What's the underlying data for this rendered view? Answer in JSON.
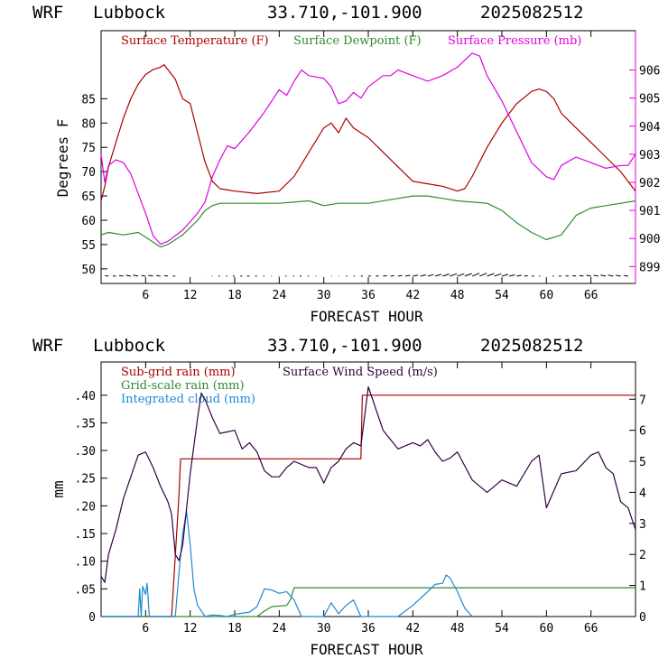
{
  "header": {
    "model": "WRF",
    "station": "Lubbock",
    "location": "33.710,-101.900",
    "run": "2025082512"
  },
  "colors": {
    "temperature": "#aa0000",
    "dewpoint": "#2e8b2e",
    "pressure": "#dd00dd",
    "subgrid_rain": "#aa0000",
    "gridscale_rain": "#2e8b2e",
    "cloud": "#1e88d0",
    "wind_speed": "#300040"
  },
  "chart_data": [
    {
      "type": "line",
      "xlabel": "FORECAST HOUR",
      "ylabel": "Degrees F",
      "xlim": [
        0,
        72
      ],
      "ylim": [
        47,
        99
      ],
      "y2lim": [
        898.4,
        907.4
      ],
      "xticks": [
        6,
        12,
        18,
        24,
        30,
        36,
        42,
        48,
        54,
        60,
        66
      ],
      "xticklabels": [
        "6",
        "12",
        "18",
        "24",
        "30",
        "36",
        "42",
        "48",
        "54",
        "60",
        "66"
      ],
      "yticks": [
        50,
        55,
        60,
        65,
        70,
        75,
        80,
        85
      ],
      "yticklabels": [
        "50",
        "55",
        "60",
        "65",
        "70",
        "75",
        "80",
        "85"
      ],
      "y2ticks": [
        899,
        900,
        901,
        902,
        903,
        904,
        905,
        906
      ],
      "y2ticklabels": [
        "899",
        "900",
        "901",
        "902",
        "903",
        "904",
        "905",
        "906"
      ],
      "legend": [
        "Surface Temperature (F)",
        "Surface Dewpoint (F)",
        "Surface Pressure (mb)"
      ],
      "series": [
        {
          "name": "Surface Temperature (F)",
          "axis": "left",
          "x": [
            0,
            0.5,
            1,
            2,
            3,
            4,
            5,
            6,
            7,
            8,
            8.5,
            9,
            10,
            11,
            12,
            13,
            14,
            15,
            16,
            18,
            21,
            24,
            26,
            28,
            30,
            31,
            32,
            33,
            34,
            36,
            38,
            40,
            42,
            44,
            46,
            48,
            49,
            50,
            52,
            54,
            56,
            58,
            59,
            60,
            61,
            62,
            64,
            66,
            68,
            70,
            72
          ],
          "y": [
            64,
            67,
            71,
            76,
            81,
            85,
            88,
            90,
            91,
            91.5,
            92,
            91,
            89,
            85,
            84,
            78,
            72,
            68,
            66.5,
            66,
            65.5,
            66,
            69,
            74,
            79,
            80,
            78,
            81,
            79,
            77,
            74,
            71,
            68,
            67.5,
            67,
            66,
            66.5,
            69,
            75,
            80,
            84,
            86.5,
            87,
            86.5,
            85,
            82,
            79,
            76,
            73,
            70,
            66
          ]
        },
        {
          "name": "Surface Dewpoint (F)",
          "axis": "left",
          "x": [
            0,
            1,
            3,
            5,
            6,
            7,
            8,
            9,
            10,
            11,
            12,
            13,
            14,
            15,
            16,
            18,
            24,
            28,
            30,
            32,
            36,
            40,
            42,
            44,
            46,
            48,
            52,
            54,
            56,
            58,
            60,
            62,
            64,
            66,
            68,
            70,
            72
          ],
          "y": [
            57,
            57.5,
            57,
            57.5,
            56.5,
            55.5,
            54.5,
            55,
            56,
            57,
            58.5,
            60,
            62,
            63,
            63.5,
            63.5,
            63.5,
            64,
            63,
            63.5,
            63.5,
            64.5,
            65,
            65,
            64.5,
            64,
            63.5,
            62,
            59.5,
            57.5,
            56,
            57,
            61,
            62.5,
            63,
            63.5,
            64
          ]
        },
        {
          "name": "Surface Pressure (mb)",
          "axis": "right",
          "x": [
            0,
            0.5,
            1,
            2,
            3,
            4,
            5,
            6,
            7,
            8,
            9,
            10,
            11,
            12,
            13,
            14,
            15,
            16,
            17,
            18,
            20,
            22,
            24,
            25,
            26,
            27,
            28,
            30,
            31,
            32,
            33,
            34,
            35,
            36,
            38,
            39,
            40,
            42,
            44,
            46,
            48,
            50,
            51,
            52,
            54,
            56,
            58,
            60,
            61,
            62,
            64,
            66,
            68,
            70,
            71,
            72
          ],
          "y": [
            903,
            902,
            902.6,
            902.8,
            902.7,
            902.3,
            901.6,
            900.9,
            900.1,
            899.8,
            899.9,
            900.1,
            900.3,
            900.6,
            900.9,
            901.3,
            902.2,
            902.8,
            903.3,
            903.2,
            903.8,
            904.5,
            905.3,
            905.1,
            905.6,
            906.0,
            905.8,
            905.7,
            905.4,
            904.8,
            904.9,
            905.2,
            905.0,
            905.4,
            905.8,
            905.8,
            906.0,
            905.8,
            905.6,
            905.8,
            906.1,
            906.6,
            906.5,
            905.8,
            904.9,
            903.8,
            902.7,
            902.2,
            902.1,
            902.6,
            902.9,
            902.7,
            902.5,
            902.6,
            902.6,
            903
          ]
        }
      ],
      "wind_barbs": {
        "x": [
          1,
          2,
          3,
          4,
          5,
          6,
          7,
          8,
          9,
          10,
          14,
          15,
          16,
          17,
          18,
          19,
          20,
          21,
          22,
          23,
          24,
          25,
          26,
          27,
          28,
          29,
          30,
          31,
          32,
          33,
          34,
          35,
          36,
          37,
          38,
          39,
          40,
          41,
          42,
          43,
          44,
          45,
          46,
          47,
          48,
          49,
          50,
          51,
          52,
          53,
          54,
          55,
          56,
          57,
          58,
          59,
          60,
          61,
          62,
          63,
          64,
          65,
          66,
          67,
          68,
          69,
          70,
          71
        ],
        "dir_deg": [
          210,
          205,
          215,
          220,
          225,
          215,
          220,
          215,
          210,
          200,
          180,
          185,
          190,
          190,
          195,
          195,
          200,
          195,
          190,
          185,
          185,
          190,
          190,
          195,
          190,
          185,
          180,
          175,
          175,
          170,
          170,
          165,
          160,
          155,
          150,
          150,
          145,
          140,
          135,
          130,
          125,
          120,
          115,
          110,
          110,
          105,
          100,
          100,
          105,
          110,
          120,
          130,
          140,
          150,
          160,
          170,
          180,
          190,
          200,
          205,
          210,
          215,
          220,
          220,
          225,
          225,
          220,
          215
        ]
      }
    },
    {
      "type": "line",
      "xlabel": "FORECAST HOUR",
      "ylabel": "mm",
      "xlim": [
        0,
        72
      ],
      "ylim": [
        0,
        0.46
      ],
      "y2lim": [
        0,
        8.2
      ],
      "xticks": [
        6,
        12,
        18,
        24,
        30,
        36,
        42,
        48,
        54,
        60,
        66
      ],
      "xticklabels": [
        "6",
        "12",
        "18",
        "24",
        "30",
        "36",
        "42",
        "48",
        "54",
        "60",
        "66"
      ],
      "yticks": [
        0,
        0.05,
        0.1,
        0.15,
        0.2,
        0.25,
        0.3,
        0.35,
        0.4
      ],
      "yticklabels": [
        "0",
        ".05",
        ".10",
        ".15",
        ".20",
        ".25",
        ".30",
        ".35",
        ".40"
      ],
      "y2ticks": [
        0,
        1,
        2,
        3,
        4,
        5,
        6,
        7
      ],
      "y2ticklabels": [
        "0",
        "1",
        "2",
        "3",
        "4",
        "5",
        "6",
        "7"
      ],
      "legend": [
        "Sub-grid rain (mm)",
        "Grid-scale rain (mm)",
        "Integrated cloud (mm)",
        "Surface Wind Speed (m/s)"
      ],
      "series": [
        {
          "name": "Sub-grid rain (mm)",
          "axis": "left",
          "x": [
            0,
            9.5,
            10.5,
            10.7,
            35,
            35.2,
            72
          ],
          "y": [
            0,
            0,
            0.22,
            0.285,
            0.285,
            0.4,
            0.4
          ]
        },
        {
          "name": "Grid-scale rain (mm)",
          "axis": "left",
          "x": [
            0,
            21,
            22,
            23,
            25,
            25.5,
            26,
            72
          ],
          "y": [
            0,
            0,
            0.01,
            0.018,
            0.02,
            0.03,
            0.052,
            0.052
          ]
        },
        {
          "name": "Integrated cloud (mm)",
          "axis": "left",
          "x": [
            0,
            5,
            5.2,
            5.4,
            5.6,
            6,
            6.2,
            6.5,
            10,
            10.5,
            11,
            11.5,
            12,
            12.5,
            13,
            14,
            15,
            16,
            17,
            18,
            20,
            21,
            22,
            23,
            24,
            25,
            26,
            27,
            30,
            31,
            32,
            33,
            34,
            35,
            40,
            42,
            44,
            45,
            46,
            46.5,
            47,
            48,
            49,
            50
          ],
          "y": [
            0,
            0,
            0.05,
            0.0,
            0.055,
            0.04,
            0.06,
            0,
            0,
            0.08,
            0.15,
            0.19,
            0.13,
            0.05,
            0.02,
            0,
            0.003,
            0.002,
            0,
            0.004,
            0.008,
            0.018,
            0.05,
            0.048,
            0.042,
            0.045,
            0.03,
            0,
            0,
            0.025,
            0.005,
            0.02,
            0.03,
            0,
            0,
            0.02,
            0.045,
            0.058,
            0.06,
            0.075,
            0.07,
            0.045,
            0.015,
            0
          ]
        },
        {
          "name": "Surface Wind Speed (m/s)",
          "axis": "right",
          "x": [
            0,
            0.5,
            1,
            2,
            3,
            4,
            5,
            6,
            7,
            8,
            9,
            9.5,
            10,
            10.5,
            11,
            12,
            13,
            13.5,
            14,
            15,
            16,
            18,
            19,
            20,
            21,
            22,
            23,
            24,
            25,
            26,
            27,
            28,
            29,
            30,
            31,
            32,
            33,
            34,
            35,
            36,
            38,
            40,
            42,
            43,
            44,
            45,
            46,
            47,
            48,
            50,
            52,
            54,
            56,
            58,
            59,
            60,
            62,
            64,
            66,
            67,
            68,
            69,
            70,
            71,
            72
          ],
          "y": [
            1.3,
            1.1,
            2,
            2.8,
            3.8,
            4.5,
            5.2,
            5.3,
            4.8,
            4.2,
            3.7,
            3.3,
            2,
            1.8,
            2.3,
            4.6,
            6.4,
            7.2,
            7.0,
            6.4,
            5.9,
            6.0,
            5.4,
            5.6,
            5.3,
            4.7,
            4.5,
            4.5,
            4.8,
            5.0,
            4.9,
            4.8,
            4.8,
            4.3,
            4.8,
            5.0,
            5.4,
            5.6,
            5.5,
            7.4,
            6.0,
            5.4,
            5.6,
            5.5,
            5.7,
            5.3,
            5.0,
            5.1,
            5.3,
            4.4,
            4.0,
            4.4,
            4.2,
            5.0,
            5.2,
            3.5,
            4.6,
            4.7,
            5.2,
            5.3,
            4.8,
            4.6,
            3.7,
            3.5,
            2.8
          ]
        }
      ]
    }
  ]
}
